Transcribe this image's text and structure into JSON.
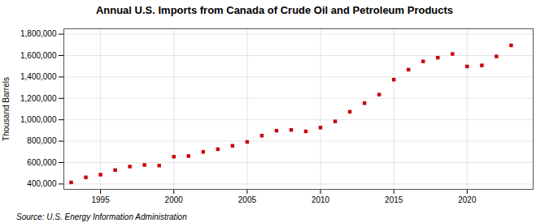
{
  "chart_data": {
    "type": "scatter",
    "title": "Annual U.S. Imports from Canada of Crude Oil and Petroleum Products",
    "ylabel": "Thousand Barrels",
    "source": "Source: U.S. Energy Information Administration",
    "x": [
      1993,
      1994,
      1995,
      1996,
      1997,
      1998,
      1999,
      2000,
      2001,
      2002,
      2003,
      2004,
      2005,
      2006,
      2007,
      2008,
      2009,
      2010,
      2011,
      2012,
      2013,
      2014,
      2015,
      2016,
      2017,
      2018,
      2019,
      2020,
      2021,
      2022,
      2023
    ],
    "values": [
      415000,
      462000,
      487000,
      530000,
      563000,
      578000,
      572000,
      655000,
      661000,
      700000,
      725000,
      757000,
      793000,
      852000,
      898000,
      905000,
      892000,
      927000,
      985000,
      1075000,
      1155000,
      1235000,
      1375000,
      1468000,
      1545000,
      1580000,
      1615000,
      1498000,
      1508000,
      1592000,
      1695000
    ],
    "color": "#cc0000",
    "marker": "square",
    "xlim": [
      1992.5,
      2024.5
    ],
    "xticks": [
      1995,
      2000,
      2005,
      2010,
      2015,
      2020
    ],
    "ylim": [
      350000,
      1850000
    ],
    "yticks": [
      {
        "value": 400000,
        "label": "400,000"
      },
      {
        "value": 600000,
        "label": "600,000"
      },
      {
        "value": 800000,
        "label": "800,000"
      },
      {
        "value": 1000000,
        "label": "1,000,000"
      },
      {
        "value": 1200000,
        "label": "1,200,000"
      },
      {
        "value": 1400000,
        "label": "1,400,000"
      },
      {
        "value": 1600000,
        "label": "1,600,000"
      },
      {
        "value": 1800000,
        "label": "1,800,000"
      }
    ],
    "grid": true
  }
}
